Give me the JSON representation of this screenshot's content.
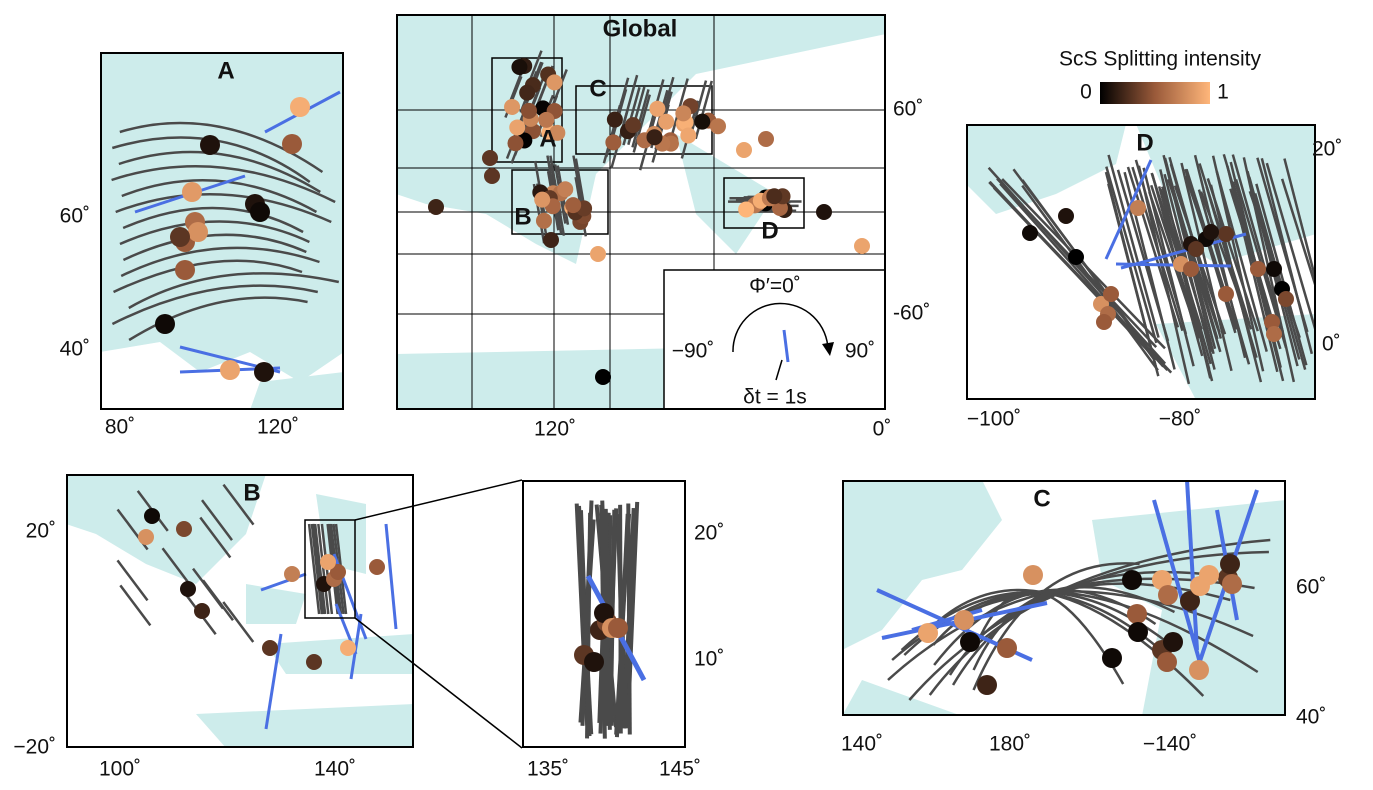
{
  "panels": {
    "A": {
      "label": "A",
      "yticks": [
        "60˚",
        "40˚"
      ],
      "xticks": [
        "80˚",
        "120˚"
      ]
    },
    "global": {
      "title": "Global",
      "insets": [
        "A",
        "B",
        "C",
        "D"
      ],
      "yticks": [
        "60˚",
        "-60˚"
      ],
      "xticks": [
        "120˚",
        "0˚"
      ]
    },
    "D": {
      "label": "D",
      "yticks": [
        "20˚",
        "0˚"
      ],
      "xticks": [
        "−100˚",
        "−80˚"
      ]
    },
    "B": {
      "label": "B",
      "yticks": [
        "20˚",
        "−20˚"
      ],
      "xticks": [
        "100˚",
        "140˚"
      ]
    },
    "zoom": {
      "yticks": [
        "20˚",
        "10˚"
      ],
      "xticks": [
        "135˚",
        "145˚"
      ]
    },
    "C": {
      "label": "C",
      "yticks": [
        "60˚",
        "40˚"
      ],
      "xticks": [
        "140˚",
        "180˚",
        "−140˚"
      ]
    }
  },
  "colorbar": {
    "title": "ScS Splitting intensity",
    "min": 0,
    "max": 1
  },
  "legend": {
    "phi": "Φ′=0˚",
    "left": "−90˚",
    "right": "90˚",
    "dt": "δt = 1s"
  }
}
